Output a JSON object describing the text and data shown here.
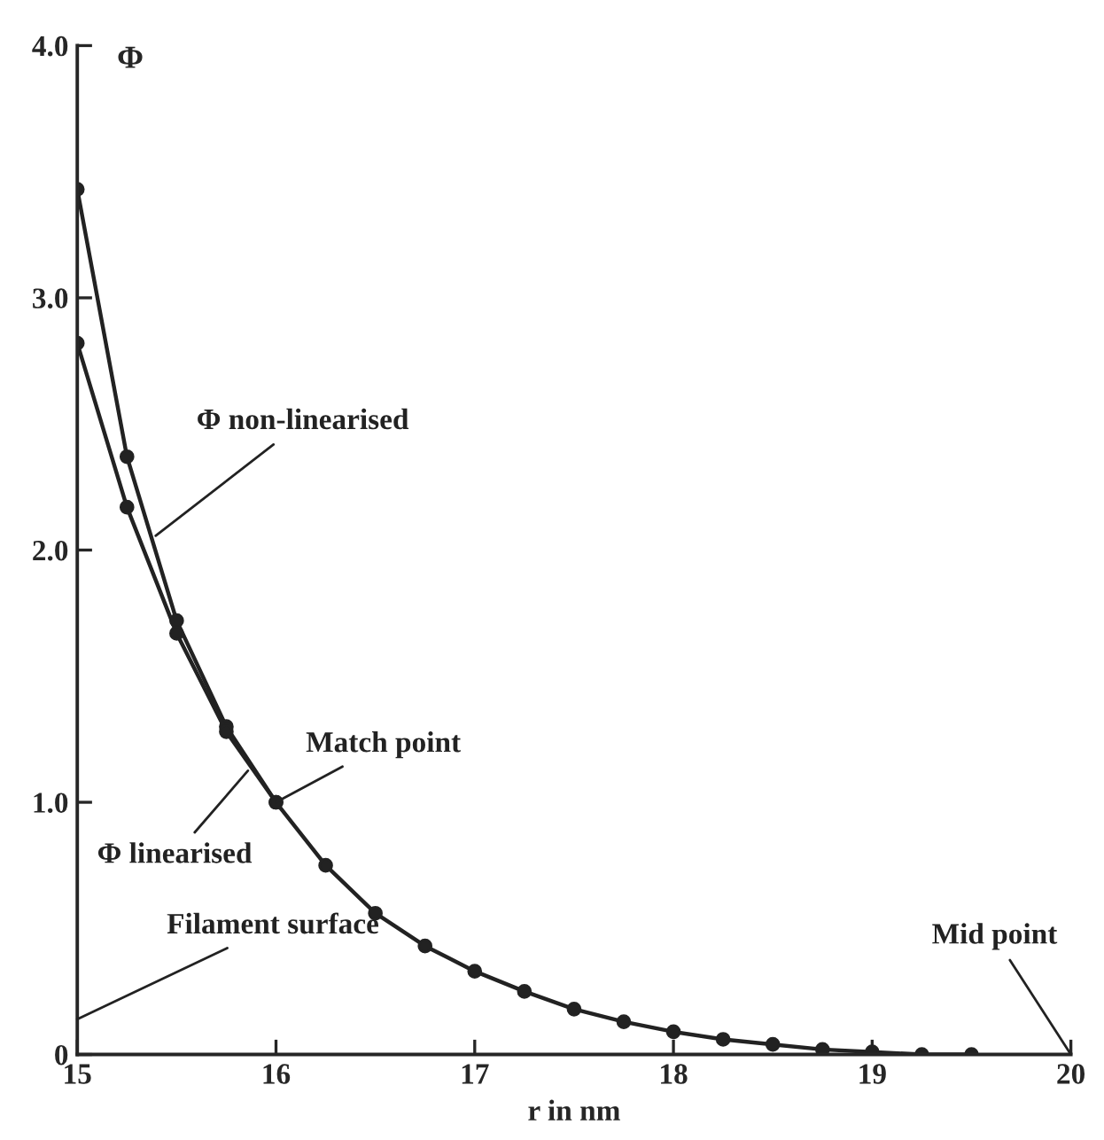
{
  "chart_data": {
    "type": "line",
    "xlabel": "r in nm",
    "ylabel": "Φ",
    "xlim": [
      15,
      20
    ],
    "ylim": [
      0,
      4.0
    ],
    "xticks": [
      15,
      16,
      17,
      18,
      19,
      20
    ],
    "yticks": [
      0,
      {
        "value": 1,
        "label": "1.0"
      },
      {
        "value": 2,
        "label": "2.0"
      },
      {
        "value": 3,
        "label": "3.0"
      },
      {
        "value": 4,
        "label": "4.0"
      }
    ],
    "grid": false,
    "marker": "circle",
    "line_style": "solid",
    "series": [
      {
        "name": "Φ non-linearised",
        "color": "#222222",
        "x": [
          15,
          15.25,
          15.5,
          15.75,
          16
        ],
        "values": [
          3.43,
          2.37,
          1.72,
          1.3,
          1.0
        ]
      },
      {
        "name": "Φ linearised",
        "color": "#222222",
        "x": [
          15,
          15.25,
          15.5,
          15.75,
          16,
          16.25,
          16.5,
          16.75,
          17,
          17.25,
          17.5,
          17.75,
          18,
          18.25,
          18.5,
          18.75,
          19,
          19.25,
          19.5
        ],
        "values": [
          2.82,
          2.17,
          1.67,
          1.28,
          1.0,
          0.75,
          0.56,
          0.43,
          0.33,
          0.25,
          0.18,
          0.13,
          0.09,
          0.06,
          0.04,
          0.02,
          0.01,
          0.0,
          0.0
        ]
      }
    ],
    "annotations": [
      {
        "text": "Match point",
        "x": 16,
        "y": 1.0
      },
      "Filament surface",
      "Mid point"
    ]
  }
}
